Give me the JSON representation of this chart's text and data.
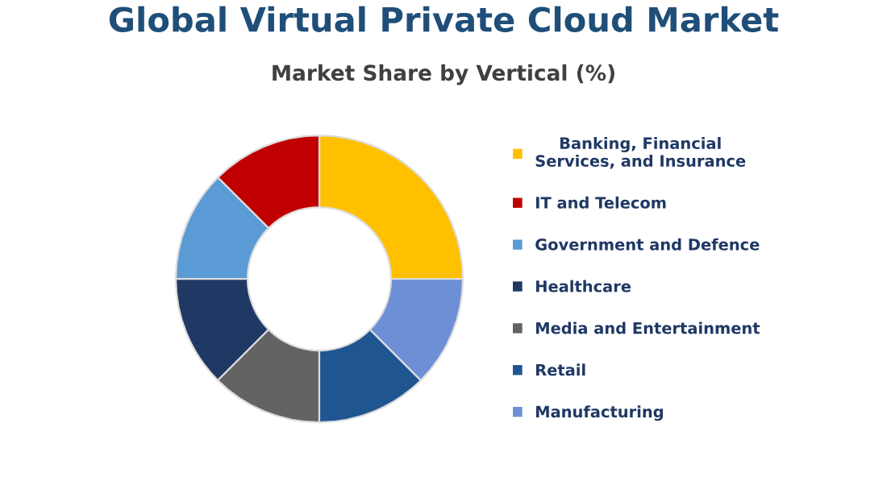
{
  "chart_data": {
    "type": "donut",
    "title": "Global Virtual Private Cloud Market",
    "subtitle": "Market Share by Vertical (%)",
    "categories": [
      "Banking, Financial Services, and Insurance",
      "IT and Telecom",
      "Government and Defence",
      "Healthcare",
      "Media and Entertainment",
      "Retail",
      "Manufacturing"
    ],
    "values": [
      25,
      12.5,
      12.5,
      12.5,
      12.5,
      12.5,
      12.5
    ],
    "colors": [
      "#ffc000",
      "#c00000",
      "#5b9bd5",
      "#203864",
      "#636363",
      "#1f5591",
      "#6d8fd6"
    ],
    "legend": "right"
  }
}
